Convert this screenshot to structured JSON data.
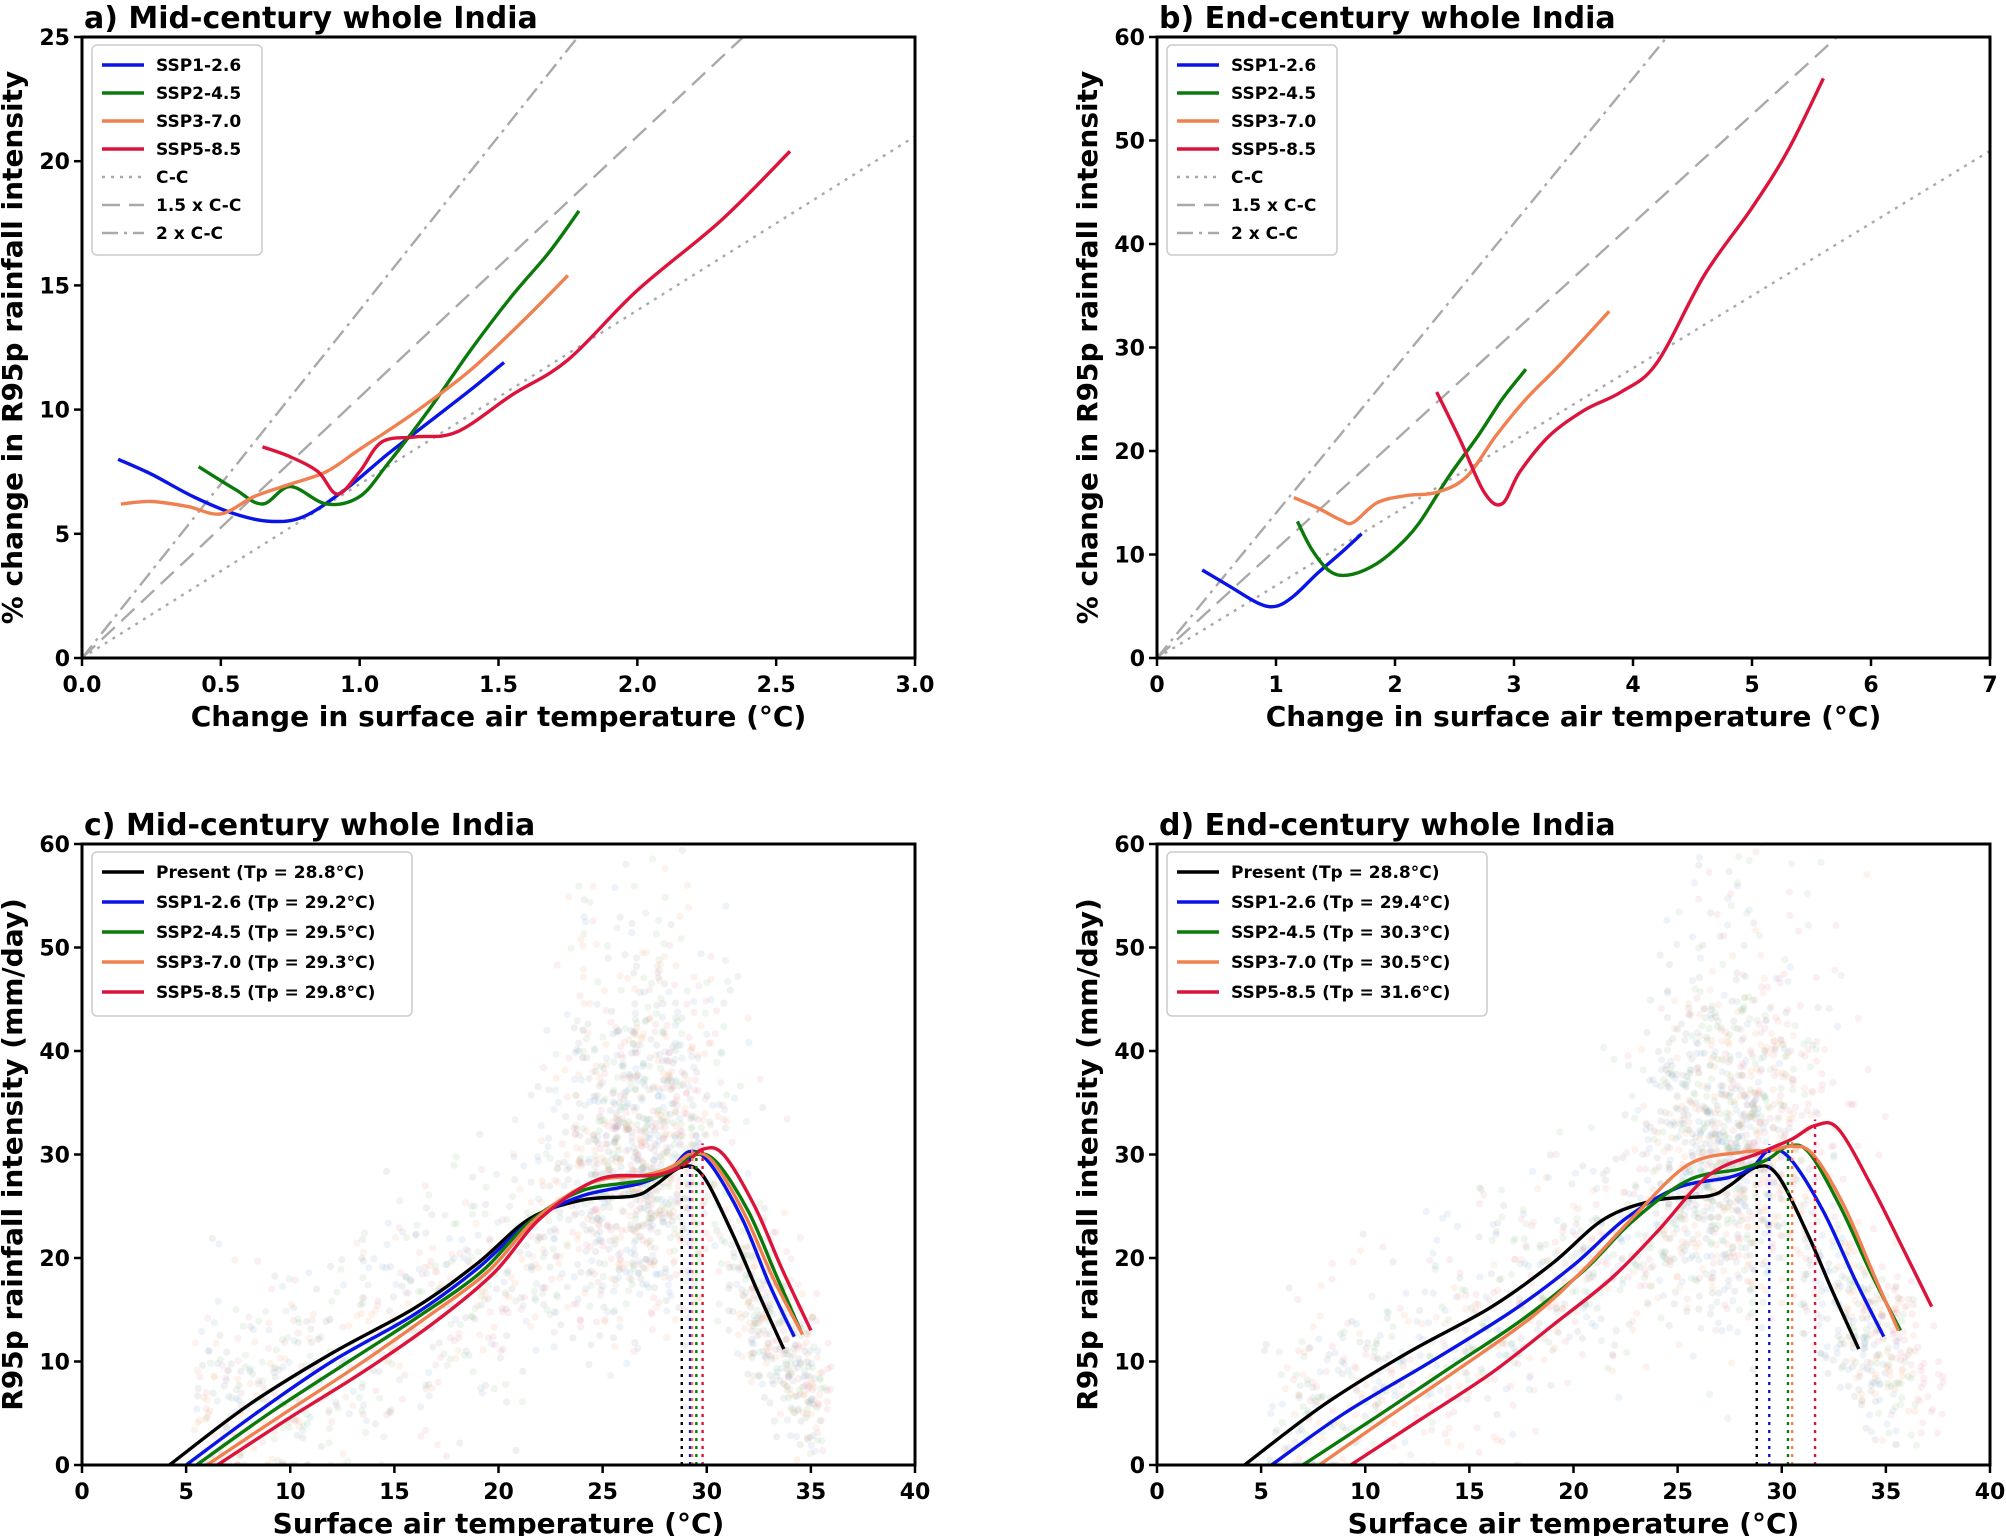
{
  "chart_data": [
    {
      "id": "a",
      "type": "line",
      "title": "a) Mid-century whole India",
      "xlabel": "Change in surface air temperature (°C)",
      "ylabel": "% change in R95p rainfall intensity",
      "xlim": [
        0,
        3.0
      ],
      "ylim": [
        0,
        25
      ],
      "xticks": [
        0,
        0.5,
        1.0,
        1.5,
        2.0,
        2.5,
        3.0
      ],
      "xtick_labels": [
        "0.0",
        "0.5",
        "1.0",
        "1.5",
        "2.0",
        "2.5",
        "3.0"
      ],
      "yticks": [
        0,
        5,
        10,
        15,
        20,
        25
      ],
      "ytick_labels": [
        "0",
        "5",
        "10",
        "15",
        "20",
        "25"
      ],
      "legend_position": "top-left",
      "reference_lines": [
        {
          "name": "C-C",
          "slope": 7,
          "color": "#a9a9a9",
          "dash": "dotted"
        },
        {
          "name": "1.5 x C-C",
          "slope": 10.5,
          "color": "#a9a9a9",
          "dash": "dashed"
        },
        {
          "name": "2 x C-C",
          "slope": 14,
          "color": "#a9a9a9",
          "dash": "dashdot"
        }
      ],
      "series": [
        {
          "name": "SSP1-2.6",
          "color": "#0a14e6",
          "x": [
            0.13,
            0.25,
            0.4,
            0.55,
            0.68,
            0.8,
            0.95,
            1.1,
            1.25,
            1.4,
            1.52
          ],
          "y": [
            8.0,
            7.4,
            6.5,
            5.8,
            5.5,
            5.7,
            6.8,
            8.2,
            9.5,
            10.8,
            11.9
          ]
        },
        {
          "name": "SSP2-4.5",
          "color": "#0b7a0b",
          "x": [
            0.42,
            0.55,
            0.65,
            0.75,
            0.88,
            1.0,
            1.1,
            1.25,
            1.4,
            1.55,
            1.68,
            1.79
          ],
          "y": [
            7.7,
            6.8,
            6.2,
            6.9,
            6.2,
            6.5,
            7.8,
            10.0,
            12.4,
            14.6,
            16.3,
            18.0
          ]
        },
        {
          "name": "SSP3-7.0",
          "color": "#f08050",
          "x": [
            0.14,
            0.25,
            0.38,
            0.5,
            0.62,
            0.75,
            0.88,
            1.0,
            1.2,
            1.4,
            1.6,
            1.75
          ],
          "y": [
            6.2,
            6.3,
            6.1,
            5.8,
            6.5,
            7.0,
            7.5,
            8.4,
            9.9,
            11.6,
            13.7,
            15.4
          ]
        },
        {
          "name": "SSP5-8.5",
          "color": "#dc143c",
          "x": [
            0.65,
            0.75,
            0.85,
            0.92,
            1.0,
            1.08,
            1.2,
            1.35,
            1.55,
            1.75,
            2.0,
            2.3,
            2.55
          ],
          "y": [
            8.5,
            8.1,
            7.5,
            6.6,
            7.5,
            8.7,
            8.9,
            9.1,
            10.6,
            12.0,
            14.8,
            17.6,
            20.4
          ]
        }
      ],
      "legend": [
        "SSP1-2.6",
        "SSP2-4.5",
        "SSP3-7.0",
        "SSP5-8.5",
        "C-C",
        "1.5 x C-C",
        "2 x C-C"
      ]
    },
    {
      "id": "b",
      "type": "line",
      "title": "b) End-century whole India",
      "xlabel": "Change in surface air temperature (°C)",
      "ylabel": "% change in R95p rainfall intensity",
      "xlim": [
        0,
        7
      ],
      "ylim": [
        0,
        60
      ],
      "xticks": [
        0,
        1,
        2,
        3,
        4,
        5,
        6,
        7
      ],
      "xtick_labels": [
        "0",
        "1",
        "2",
        "3",
        "4",
        "5",
        "6",
        "7"
      ],
      "yticks": [
        0,
        10,
        20,
        30,
        40,
        50,
        60
      ],
      "ytick_labels": [
        "0",
        "10",
        "20",
        "30",
        "40",
        "50",
        "60"
      ],
      "legend_position": "top-left",
      "reference_lines": [
        {
          "name": "C-C",
          "slope": 7,
          "color": "#a9a9a9",
          "dash": "dotted"
        },
        {
          "name": "1.5 x C-C",
          "slope": 10.5,
          "color": "#a9a9a9",
          "dash": "dashed"
        },
        {
          "name": "2 x C-C",
          "slope": 14,
          "color": "#a9a9a9",
          "dash": "dashdot"
        }
      ],
      "series": [
        {
          "name": "SSP1-2.6",
          "color": "#0a14e6",
          "x": [
            0.38,
            0.6,
            0.85,
            1.0,
            1.15,
            1.35,
            1.55,
            1.72
          ],
          "y": [
            8.5,
            7.0,
            5.3,
            5.0,
            6.0,
            8.2,
            10.2,
            12.0
          ]
        },
        {
          "name": "SSP2-4.5",
          "color": "#0b7a0b",
          "x": [
            1.18,
            1.3,
            1.45,
            1.6,
            1.8,
            2.0,
            2.2,
            2.45,
            2.7,
            2.9,
            3.1
          ],
          "y": [
            13.2,
            10.5,
            8.4,
            8.0,
            8.8,
            10.5,
            13.0,
            17.5,
            21.5,
            25.0,
            27.9
          ]
        },
        {
          "name": "SSP3-7.0",
          "color": "#f08050",
          "x": [
            1.15,
            1.35,
            1.55,
            1.65,
            1.85,
            2.1,
            2.35,
            2.6,
            2.85,
            3.1,
            3.4,
            3.8
          ],
          "y": [
            15.5,
            14.5,
            13.3,
            13.1,
            15.0,
            15.7,
            16.0,
            17.5,
            21.5,
            25.0,
            28.5,
            33.5
          ]
        },
        {
          "name": "SSP5-8.5",
          "color": "#dc143c",
          "x": [
            2.35,
            2.55,
            2.75,
            2.9,
            3.05,
            3.3,
            3.6,
            3.9,
            4.2,
            4.6,
            5.0,
            5.3,
            5.6
          ],
          "y": [
            25.7,
            21.0,
            16.0,
            14.9,
            18.0,
            21.5,
            24.0,
            25.7,
            28.5,
            37.0,
            43.5,
            49.0,
            56.0
          ]
        }
      ],
      "legend": [
        "SSP1-2.6",
        "SSP2-4.5",
        "SSP3-7.0",
        "SSP5-8.5",
        "C-C",
        "1.5 x C-C",
        "2 x C-C"
      ]
    },
    {
      "id": "c",
      "type": "scatter",
      "title": "c) Mid-century whole India",
      "xlabel": "Surface air temperature (°C)",
      "ylabel": "R95p rainfall intensity (mm/day)",
      "xlim": [
        0,
        40
      ],
      "ylim": [
        0,
        60
      ],
      "xticks": [
        0,
        5,
        10,
        15,
        20,
        25,
        30,
        35,
        40
      ],
      "xtick_labels": [
        "0",
        "5",
        "10",
        "15",
        "20",
        "25",
        "30",
        "35",
        "40"
      ],
      "yticks": [
        0,
        10,
        20,
        30,
        40,
        50,
        60
      ],
      "ytick_labels": [
        "0",
        "10",
        "20",
        "30",
        "40",
        "50",
        "60"
      ],
      "legend_position": "top-left",
      "scatter_seed": 11,
      "series": [
        {
          "name": "Present",
          "tp": "28.8°C",
          "tp_value": 28.8,
          "color": "#000000",
          "scatter_color": "#9aa09a",
          "x": [
            4.2,
            8,
            12,
            16,
            19,
            21.5,
            24,
            26.5,
            27.5,
            28.8,
            29.8,
            31.2,
            32.5,
            33.7
          ],
          "y": [
            0,
            5.8,
            10.8,
            15.2,
            19.5,
            23.8,
            25.6,
            26.0,
            27.0,
            28.8,
            28.0,
            22.5,
            16.5,
            11.2
          ]
        },
        {
          "name": "SSP1-2.6",
          "tp": "29.2°C",
          "tp_value": 29.2,
          "color": "#0a14e6",
          "scatter_color": "#8fb4dc",
          "x": [
            5.0,
            8.5,
            12,
            16,
            19,
            21.5,
            24,
            26.8,
            28.2,
            29.2,
            30.2,
            31.7,
            33,
            34.2
          ],
          "y": [
            0,
            5.2,
            10.0,
            14.6,
            19.0,
            23.5,
            26.0,
            27.2,
            28.5,
            30.3,
            29.0,
            23.8,
            17.5,
            12.4
          ]
        },
        {
          "name": "SSP2-4.5",
          "tp": "29.5°C",
          "tp_value": 29.5,
          "color": "#0b7a0b",
          "scatter_color": "#98c898",
          "x": [
            5.5,
            9,
            12.5,
            16.2,
            19.2,
            21.5,
            24,
            27,
            28.4,
            29.5,
            30.5,
            32,
            33.3,
            34.5
          ],
          "y": [
            0,
            5.0,
            9.6,
            14.4,
            18.7,
            23.5,
            26.5,
            27.5,
            28.5,
            30.0,
            29.2,
            24.5,
            18.5,
            13.0
          ]
        },
        {
          "name": "SSP3-7.0",
          "tp": "29.3°C",
          "tp_value": 29.3,
          "color": "#f08050",
          "scatter_color": "#f2b48a",
          "x": [
            6.0,
            9.5,
            13,
            16.5,
            19.5,
            21.8,
            24.5,
            27,
            28.3,
            29.3,
            30.3,
            31.8,
            33.2,
            34.6
          ],
          "y": [
            0,
            4.7,
            9.3,
            14.2,
            18.7,
            23.8,
            27.3,
            28.0,
            28.8,
            30.1,
            29.3,
            24.3,
            18.0,
            12.6
          ]
        },
        {
          "name": "SSP5-8.5",
          "tp": "29.8°C",
          "tp_value": 29.8,
          "color": "#dc143c",
          "scatter_color": "#e89cb0",
          "x": [
            6.5,
            10,
            13.5,
            17,
            19.8,
            22,
            24.8,
            27.5,
            28.9,
            29.8,
            30.8,
            32.3,
            33.6,
            35.0
          ],
          "y": [
            0,
            4.6,
            9.0,
            13.9,
            18.6,
            23.8,
            27.6,
            28.0,
            29.0,
            30.5,
            30.0,
            25.0,
            19.0,
            13.0
          ]
        }
      ],
      "legend": [
        "Present (Tp = 28.8°C)",
        "SSP1-2.6 (Tp = 29.2°C)",
        "SSP2-4.5 (Tp = 29.5°C)",
        "SSP3-7.0 (Tp = 29.3°C)",
        "SSP5-8.5 (Tp = 29.8°C)"
      ]
    },
    {
      "id": "d",
      "type": "scatter",
      "title": "d) End-century whole India",
      "xlabel": "Surface air temperature (°C)",
      "ylabel": "R95p rainfall intensity (mm/day)",
      "xlim": [
        0,
        40
      ],
      "ylim": [
        0,
        60
      ],
      "xticks": [
        0,
        5,
        10,
        15,
        20,
        25,
        30,
        35,
        40
      ],
      "xtick_labels": [
        "0",
        "5",
        "10",
        "15",
        "20",
        "25",
        "30",
        "35",
        "40"
      ],
      "yticks": [
        0,
        10,
        20,
        30,
        40,
        50,
        60
      ],
      "ytick_labels": [
        "0",
        "10",
        "20",
        "30",
        "40",
        "50",
        "60"
      ],
      "legend_position": "top-left",
      "scatter_seed": 29,
      "series": [
        {
          "name": "Present",
          "tp": "28.8°C",
          "tp_value": 28.8,
          "color": "#000000",
          "scatter_color": "#9aa09a",
          "x": [
            4.2,
            8,
            12,
            16,
            19,
            21.5,
            24,
            26.5,
            27.5,
            28.8,
            29.8,
            31.2,
            32.5,
            33.7
          ],
          "y": [
            0,
            5.8,
            10.8,
            15.2,
            19.5,
            23.8,
            25.6,
            26.0,
            27.0,
            28.8,
            28.0,
            22.5,
            16.5,
            11.2
          ]
        },
        {
          "name": "SSP1-2.6",
          "tp": "29.4°C",
          "tp_value": 29.4,
          "color": "#0a14e6",
          "scatter_color": "#8fb4dc",
          "x": [
            5.5,
            9,
            13,
            17,
            20,
            22.5,
            25,
            27.5,
            28.6,
            29.4,
            30.4,
            32,
            33.5,
            34.9
          ],
          "y": [
            0,
            5.0,
            9.8,
            14.8,
            19.3,
            23.8,
            26.8,
            27.8,
            28.8,
            30.4,
            29.6,
            24.5,
            18.0,
            12.4
          ]
        },
        {
          "name": "SSP2-4.5",
          "tp": "30.3°C",
          "tp_value": 30.3,
          "color": "#0b7a0b",
          "scatter_color": "#98c898",
          "x": [
            7.0,
            10.5,
            14,
            17.5,
            20.5,
            22.8,
            25.5,
            28,
            29.3,
            30.3,
            31.3,
            32.8,
            34.3,
            35.7
          ],
          "y": [
            0,
            4.6,
            9.3,
            14.0,
            18.8,
            23.5,
            27.5,
            28.6,
            29.5,
            30.8,
            30.2,
            25.0,
            18.5,
            13.0
          ]
        },
        {
          "name": "SSP3-7.0",
          "tp": "30.5°C",
          "tp_value": 30.5,
          "color": "#f08050",
          "scatter_color": "#f2b48a",
          "x": [
            7.8,
            11,
            14.5,
            18,
            20.5,
            22.8,
            25.5,
            28,
            29.5,
            30.5,
            31.5,
            33,
            34.5,
            35.6
          ],
          "y": [
            0,
            4.5,
            9.3,
            14.3,
            18.9,
            23.8,
            29.0,
            30.2,
            30.4,
            30.8,
            30.0,
            25.0,
            18.0,
            13.0
          ]
        },
        {
          "name": "SSP5-8.5",
          "tp": "31.6°C",
          "tp_value": 31.6,
          "color": "#dc143c",
          "scatter_color": "#e89cb0",
          "x": [
            9.3,
            12.5,
            16,
            19,
            21.8,
            24,
            26.5,
            29,
            30.5,
            31.6,
            32.7,
            34.3,
            35.8,
            37.2
          ],
          "y": [
            0,
            4.2,
            8.8,
            13.5,
            18.0,
            22.5,
            28.0,
            30.2,
            31.5,
            32.8,
            32.5,
            27.0,
            21.0,
            15.3
          ]
        }
      ],
      "legend": [
        "Present (Tp = 28.8°C)",
        "SSP1-2.6 (Tp = 29.4°C)",
        "SSP2-4.5 (Tp = 30.3°C)",
        "SSP3-7.0 (Tp = 30.5°C)",
        "SSP5-8.5 (Tp = 31.6°C)"
      ]
    }
  ]
}
